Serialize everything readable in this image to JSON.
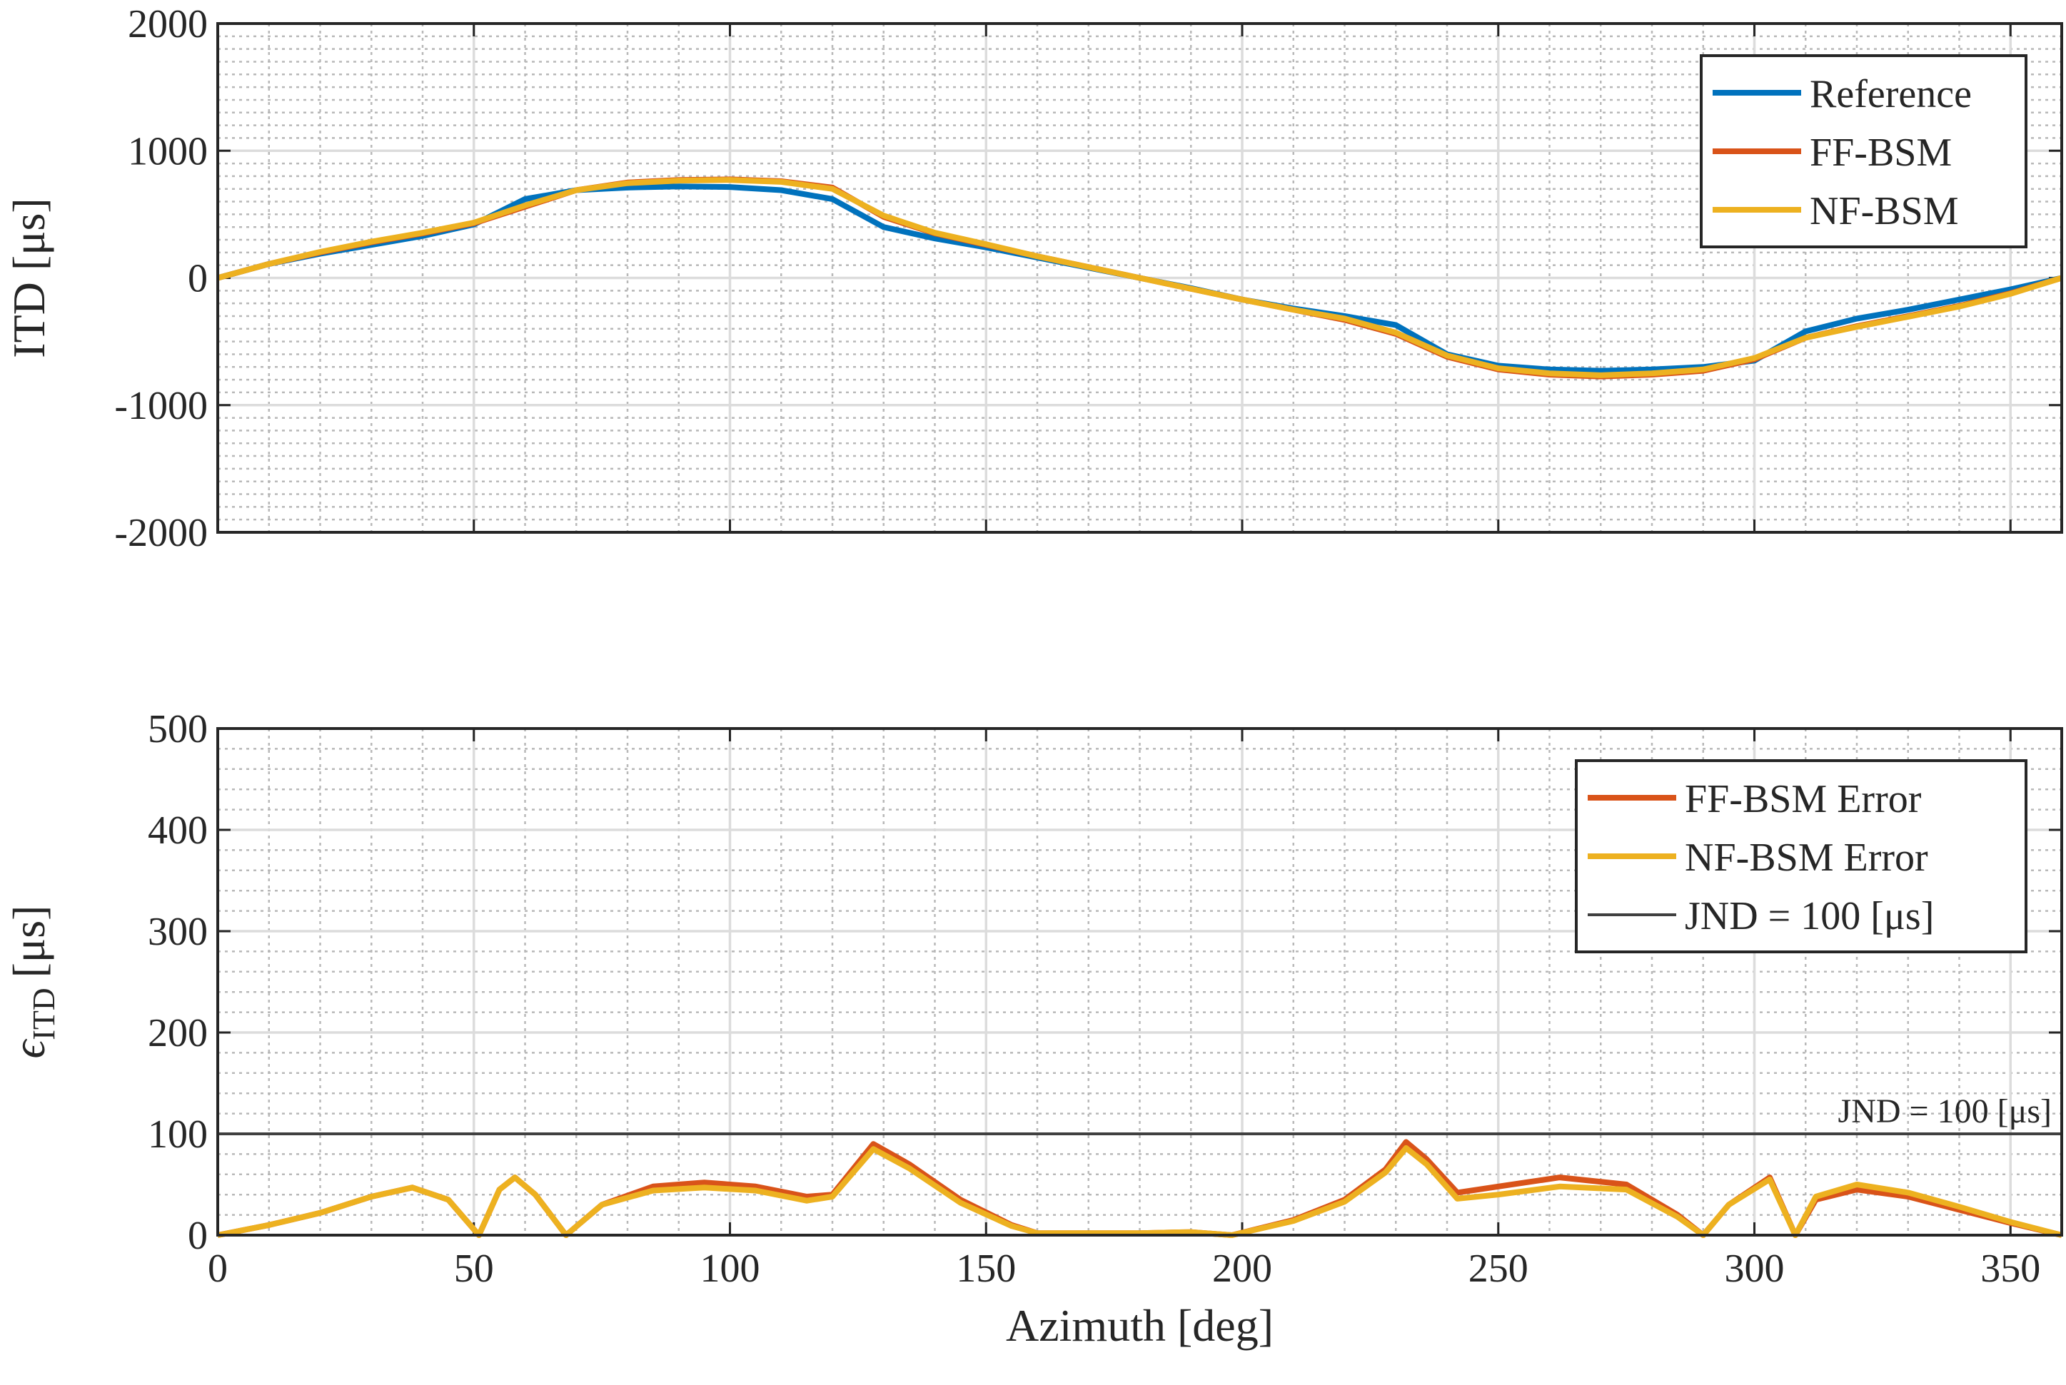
{
  "chart_data": [
    {
      "type": "line",
      "ylabel": "ITD [μs]",
      "x": [
        0,
        10,
        20,
        30,
        40,
        50,
        60,
        70,
        80,
        90,
        100,
        110,
        120,
        130,
        140,
        150,
        160,
        170,
        180,
        190,
        200,
        210,
        220,
        230,
        240,
        250,
        260,
        270,
        280,
        290,
        300,
        310,
        320,
        330,
        340,
        350,
        360
      ],
      "series": [
        {
          "name": "Reference",
          "color": "#0072BD",
          "values": [
            0,
            110,
            190,
            260,
            330,
            420,
            620,
            690,
            710,
            720,
            715,
            690,
            620,
            400,
            310,
            240,
            160,
            80,
            0,
            -80,
            -170,
            -240,
            -300,
            -370,
            -600,
            -690,
            -720,
            -730,
            -720,
            -700,
            -650,
            -420,
            -320,
            -250,
            -170,
            -90,
            0
          ]
        },
        {
          "name": "FF-BSM",
          "color": "#D95319",
          "values": [
            0,
            110,
            200,
            280,
            350,
            430,
            560,
            690,
            750,
            770,
            775,
            760,
            710,
            480,
            350,
            260,
            170,
            85,
            0,
            -85,
            -170,
            -250,
            -330,
            -440,
            -620,
            -720,
            -760,
            -775,
            -760,
            -730,
            -640,
            -470,
            -380,
            -300,
            -220,
            -120,
            0
          ]
        },
        {
          "name": "NF-BSM",
          "color": "#EDB120",
          "values": [
            0,
            110,
            205,
            285,
            355,
            435,
            570,
            690,
            745,
            765,
            770,
            755,
            700,
            490,
            355,
            265,
            170,
            85,
            0,
            -85,
            -170,
            -250,
            -320,
            -430,
            -610,
            -710,
            -750,
            -765,
            -750,
            -720,
            -630,
            -470,
            -385,
            -305,
            -225,
            -125,
            0
          ]
        }
      ],
      "xlim": [
        0,
        360
      ],
      "xticks": [
        0,
        50,
        100,
        150,
        200,
        250,
        300,
        350
      ],
      "xminor": [
        10,
        20,
        30,
        40,
        60,
        70,
        80,
        90,
        110,
        120,
        130,
        140,
        160,
        170,
        180,
        190,
        210,
        220,
        230,
        240,
        260,
        270,
        280,
        290,
        310,
        320,
        330,
        340,
        360
      ],
      "ylim": [
        -2000,
        2000
      ],
      "yticks": [
        -2000,
        -1000,
        0,
        1000,
        2000
      ],
      "yminor": [
        -1900,
        -1800,
        -1700,
        -1600,
        -1500,
        -1400,
        -1300,
        -1200,
        -1100,
        -900,
        -800,
        -700,
        -600,
        -500,
        -400,
        -300,
        -200,
        -100,
        100,
        200,
        300,
        400,
        500,
        600,
        700,
        800,
        900,
        1100,
        1200,
        1300,
        1400,
        1500,
        1600,
        1700,
        1800,
        1900
      ],
      "grid": true,
      "minor_grid": true,
      "legend": "northeast"
    },
    {
      "type": "line",
      "ylabel": {
        "symbol": "ϵ",
        "subscript": "ITD",
        "unit": "[μs]"
      },
      "xlabel": "Azimuth [deg]",
      "x": [
        0,
        10,
        20,
        30,
        38,
        45,
        51,
        55,
        58,
        62,
        68,
        75,
        85,
        95,
        105,
        115,
        120,
        128,
        135,
        145,
        155,
        160,
        170,
        180,
        190,
        198,
        210,
        220,
        228,
        232,
        236,
        242,
        250,
        262,
        275,
        285,
        290,
        295,
        303,
        308,
        312,
        320,
        330,
        340,
        350,
        360
      ],
      "series": [
        {
          "name": "FF-BSM Error",
          "color": "#D95319",
          "values": [
            0,
            10,
            22,
            38,
            47,
            35,
            0,
            45,
            57,
            40,
            0,
            30,
            48,
            52,
            48,
            38,
            40,
            90,
            70,
            35,
            10,
            2,
            2,
            2,
            3,
            0,
            15,
            35,
            65,
            92,
            75,
            42,
            48,
            57,
            50,
            20,
            0,
            30,
            57,
            0,
            35,
            45,
            38,
            25,
            12,
            0
          ]
        },
        {
          "name": "NF-BSM Error",
          "color": "#EDB120",
          "values": [
            0,
            10,
            22,
            38,
            47,
            35,
            0,
            45,
            57,
            40,
            0,
            30,
            44,
            47,
            44,
            34,
            38,
            85,
            66,
            32,
            9,
            2,
            2,
            2,
            3,
            0,
            14,
            33,
            62,
            86,
            70,
            36,
            40,
            48,
            45,
            18,
            0,
            30,
            55,
            0,
            38,
            50,
            42,
            28,
            13,
            0
          ]
        }
      ],
      "reference_lines": [
        {
          "name": "JND = 100 [μs]",
          "value": 100,
          "color": "#404040"
        }
      ],
      "annotation": "JND = 100 [μs]",
      "xlim": [
        0,
        360
      ],
      "xticks": [
        0,
        50,
        100,
        150,
        200,
        250,
        300,
        350
      ],
      "xminor": [
        10,
        20,
        30,
        40,
        60,
        70,
        80,
        90,
        110,
        120,
        130,
        140,
        160,
        170,
        180,
        190,
        210,
        220,
        230,
        240,
        260,
        270,
        280,
        290,
        310,
        320,
        330,
        340,
        360
      ],
      "ylim": [
        0,
        500
      ],
      "yticks": [
        0,
        100,
        200,
        300,
        400,
        500
      ],
      "yminor": [
        20,
        40,
        60,
        80,
        120,
        140,
        160,
        180,
        220,
        240,
        260,
        280,
        320,
        340,
        360,
        380,
        420,
        440,
        460,
        480
      ],
      "grid": true,
      "minor_grid": true,
      "legend": "northeast"
    }
  ]
}
